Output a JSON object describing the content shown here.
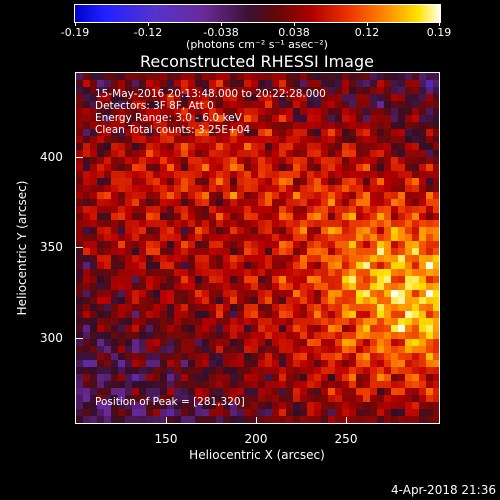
{
  "colorbar": {
    "ticks": [
      "-0.19",
      "-0.12",
      "-0.038",
      "0.038",
      "0.12",
      "0.19"
    ],
    "units": "(photons cm⁻² s⁻¹ asec⁻²)"
  },
  "title": "Reconstructed RHESSI Image",
  "annotations": {
    "time": "15-May-2016 20:13:48.000 to 20:22:28.000",
    "detectors": "Detectors: 3F 8F, Att 0",
    "energy": "Energy Range: 3.0 - 6.0 keV",
    "clean": "Clean    Total counts: 3.25E+04",
    "peak": "Position of Peak = [281,320]"
  },
  "axes": {
    "xlabel": "Heliocentric X (arcsec)",
    "ylabel": "Heliocentric Y (arcsec)",
    "xticks": [
      "150",
      "200",
      "250"
    ],
    "yticks": [
      "400",
      "350",
      "300"
    ]
  },
  "timestamp": "4-Apr-2018 21:36"
}
